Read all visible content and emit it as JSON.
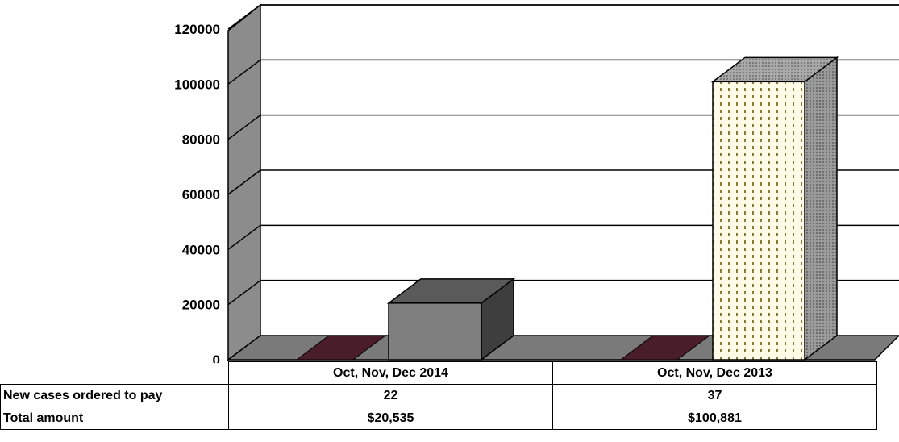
{
  "chart_data": {
    "type": "bar",
    "categories": [
      "Oct, Nov, Dec 2014",
      "Oct, Nov, Dec 2013"
    ],
    "series": [
      {
        "values": [
          20535,
          100881
        ]
      }
    ],
    "ylim": [
      0,
      120000
    ],
    "yticks": [
      "0",
      "20000",
      "40000",
      "60000",
      "80000",
      "100000",
      "120000"
    ],
    "grid": true,
    "three_d": true
  },
  "data_table": {
    "header": [
      "Oct, Nov, Dec 2014",
      "Oct, Nov, Dec 2013"
    ],
    "rows": [
      {
        "label": "New cases ordered to pay",
        "values": [
          "22",
          "37"
        ]
      },
      {
        "label": "Total amount",
        "values": [
          "$20,535",
          "$100,881"
        ]
      }
    ]
  },
  "colors": {
    "bar_2014": "#7f7f7f",
    "bar_2014_top": "#5a5a5a",
    "bar_2014_side": "#3e3e3e",
    "bar_2013_face": "#fffbe6",
    "bar_2013_dots": "#8a7a3a",
    "dark_strip": "#4a1e28",
    "wall": "#8c8c8c",
    "floor": "#7a7a7a"
  }
}
